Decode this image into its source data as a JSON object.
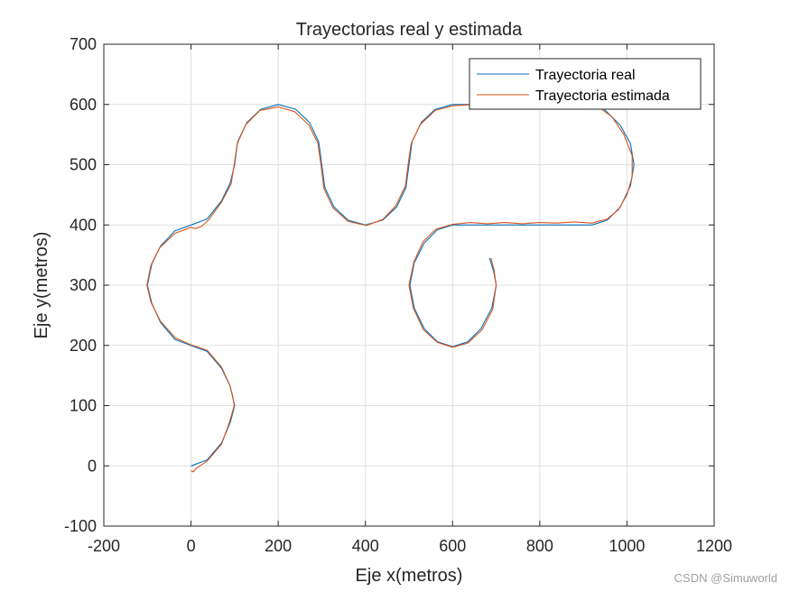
{
  "watermark": "CSDN @Simuworld",
  "chart_data": {
    "type": "line",
    "title": "Trayectorias real y estimada",
    "xlabel": "Eje x(metros)",
    "ylabel": "Eje y(metros)",
    "xlim": [
      -200,
      1200
    ],
    "ylim": [
      -100,
      700
    ],
    "xticks": [
      -200,
      0,
      200,
      400,
      600,
      800,
      1000,
      1200
    ],
    "yticks": [
      -100,
      0,
      100,
      200,
      300,
      400,
      500,
      600,
      700
    ],
    "grid": true,
    "legend_position": "top-right",
    "series": [
      {
        "name": "Trayectoria real",
        "color": "#0072BD",
        "points": [
          [
            0,
            0
          ],
          [
            37,
            10
          ],
          [
            70,
            38
          ],
          [
            90,
            72
          ],
          [
            100,
            100
          ],
          [
            90,
            132
          ],
          [
            70,
            162
          ],
          [
            37,
            190
          ],
          [
            0,
            200
          ],
          [
            -37,
            210
          ],
          [
            -70,
            238
          ],
          [
            -90,
            270
          ],
          [
            -100,
            300
          ],
          [
            -90,
            335
          ],
          [
            -70,
            365
          ],
          [
            -37,
            390
          ],
          [
            0,
            400
          ],
          [
            37,
            410
          ],
          [
            70,
            440
          ],
          [
            90,
            470
          ],
          [
            100,
            500
          ],
          [
            107,
            538
          ],
          [
            128,
            570
          ],
          [
            160,
            592
          ],
          [
            200,
            600
          ],
          [
            240,
            592
          ],
          [
            272,
            570
          ],
          [
            293,
            538
          ],
          [
            300,
            500
          ],
          [
            307,
            462
          ],
          [
            328,
            430
          ],
          [
            360,
            408
          ],
          [
            400,
            400
          ],
          [
            440,
            408
          ],
          [
            472,
            430
          ],
          [
            493,
            462
          ],
          [
            500,
            500
          ],
          [
            507,
            538
          ],
          [
            528,
            570
          ],
          [
            560,
            592
          ],
          [
            600,
            600
          ],
          [
            700,
            600
          ],
          [
            800,
            600
          ],
          [
            900,
            600
          ],
          [
            948,
            592
          ],
          [
            985,
            565
          ],
          [
            1008,
            535
          ],
          [
            1016,
            500
          ],
          [
            1008,
            465
          ],
          [
            985,
            430
          ],
          [
            955,
            408
          ],
          [
            920,
            400
          ],
          [
            800,
            400
          ],
          [
            700,
            400
          ],
          [
            600,
            400
          ],
          [
            565,
            392
          ],
          [
            535,
            370
          ],
          [
            512,
            337
          ],
          [
            502,
            300
          ],
          [
            512,
            262
          ],
          [
            535,
            228
          ],
          [
            565,
            206
          ],
          [
            600,
            198
          ],
          [
            635,
            206
          ],
          [
            665,
            228
          ],
          [
            690,
            262
          ],
          [
            700,
            300
          ],
          [
            695,
            320
          ],
          [
            685,
            345
          ]
        ]
      },
      {
        "name": "Trayectoria estimada",
        "color": "#D95319",
        "points": [
          [
            0,
            -8
          ],
          [
            5,
            -10
          ],
          [
            12,
            -4
          ],
          [
            37,
            8
          ],
          [
            70,
            36
          ],
          [
            88,
            72
          ],
          [
            99,
            100
          ],
          [
            95,
            118
          ],
          [
            89,
            134
          ],
          [
            70,
            164
          ],
          [
            37,
            192
          ],
          [
            0,
            201
          ],
          [
            -35,
            212
          ],
          [
            -70,
            240
          ],
          [
            -92,
            272
          ],
          [
            -101,
            300
          ],
          [
            -92,
            333
          ],
          [
            -72,
            362
          ],
          [
            -37,
            386
          ],
          [
            0,
            396
          ],
          [
            10,
            394
          ],
          [
            25,
            398
          ],
          [
            40,
            408
          ],
          [
            70,
            438
          ],
          [
            92,
            468
          ],
          [
            99,
            500
          ],
          [
            106,
            535
          ],
          [
            126,
            567
          ],
          [
            158,
            590
          ],
          [
            200,
            596
          ],
          [
            238,
            588
          ],
          [
            270,
            566
          ],
          [
            291,
            536
          ],
          [
            298,
            500
          ],
          [
            305,
            460
          ],
          [
            326,
            428
          ],
          [
            360,
            406
          ],
          [
            402,
            399
          ],
          [
            440,
            409
          ],
          [
            470,
            432
          ],
          [
            492,
            465
          ],
          [
            498,
            500
          ],
          [
            505,
            535
          ],
          [
            526,
            567
          ],
          [
            560,
            590
          ],
          [
            602,
            598
          ],
          [
            650,
            600
          ],
          [
            700,
            601
          ],
          [
            760,
            600
          ],
          [
            820,
            601
          ],
          [
            880,
            600
          ],
          [
            930,
            598
          ],
          [
            965,
            580
          ],
          [
            993,
            550
          ],
          [
            1012,
            515
          ],
          [
            1012,
            480
          ],
          [
            1000,
            450
          ],
          [
            980,
            425
          ],
          [
            955,
            410
          ],
          [
            920,
            403
          ],
          [
            880,
            405
          ],
          [
            840,
            403
          ],
          [
            800,
            404
          ],
          [
            760,
            402
          ],
          [
            720,
            404
          ],
          [
            680,
            402
          ],
          [
            640,
            404
          ],
          [
            600,
            401
          ],
          [
            562,
            393
          ],
          [
            532,
            372
          ],
          [
            511,
            338
          ],
          [
            500,
            300
          ],
          [
            510,
            262
          ],
          [
            533,
            226
          ],
          [
            565,
            205
          ],
          [
            600,
            197
          ],
          [
            635,
            204
          ],
          [
            668,
            226
          ],
          [
            692,
            260
          ],
          [
            700,
            300
          ],
          [
            695,
            325
          ],
          [
            688,
            345
          ]
        ]
      }
    ]
  }
}
